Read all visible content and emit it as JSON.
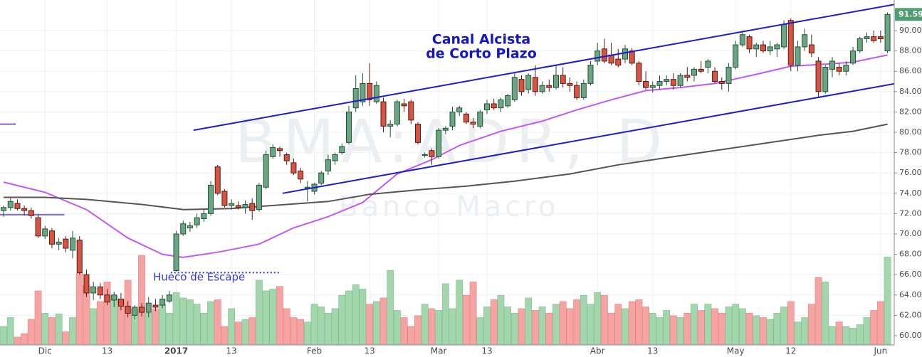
{
  "chart_data": {
    "type": "candlestick",
    "watermark": "BMA:ADR, D",
    "watermark_subtitle": "Banco Macro",
    "annotation_title": [
      "Canal Alcista",
      "de Corto Plazo"
    ],
    "annotation_gap": "Hueco de Escape",
    "annotation_color": "#1515c8",
    "gap_label_color": "#3a3ad8",
    "grid": true,
    "up_color": "#6ba583",
    "up_border": "#225437",
    "down_color": "#d75442",
    "down_border": "#5b1a13",
    "volume_up_color": "#a3d6ad",
    "volume_down_color": "#f5a3a3",
    "last_price": 91.59,
    "last_price_color": "#4f9e72",
    "xlim": [
      -0.52,
      128.87
    ],
    "ylim": [
      59.16,
      93.01
    ],
    "y2lim": [
      0,
      387
    ],
    "yticks": [
      {
        "value": 60,
        "label": "60.00"
      },
      {
        "value": 62,
        "label": "62.00"
      },
      {
        "value": 64,
        "label": "64.00"
      },
      {
        "value": 66,
        "label": "66.00"
      },
      {
        "value": 68,
        "label": "68.00"
      },
      {
        "value": 70,
        "label": "70.00"
      },
      {
        "value": 72,
        "label": "72.00"
      },
      {
        "value": 74,
        "label": "74.00"
      },
      {
        "value": 76,
        "label": "76.00"
      },
      {
        "value": 78,
        "label": "78.00"
      },
      {
        "value": 80,
        "label": "80.00"
      },
      {
        "value": 82,
        "label": "82.00"
      },
      {
        "value": 84,
        "label": "84.00"
      },
      {
        "value": 86,
        "label": "86.00"
      },
      {
        "value": 88,
        "label": "88.00"
      },
      {
        "value": 90,
        "label": "90.00"
      }
    ],
    "categories": [
      null,
      null,
      null,
      null,
      null,
      null,
      "Dic",
      null,
      null,
      null,
      null,
      null,
      null,
      null,
      null,
      "13",
      null,
      null,
      null,
      null,
      null,
      null,
      null,
      null,
      null,
      "2017",
      null,
      null,
      null,
      null,
      null,
      null,
      null,
      "13",
      null,
      null,
      null,
      null,
      null,
      null,
      null,
      null,
      null,
      null,
      null,
      "Feb",
      null,
      null,
      null,
      null,
      null,
      null,
      null,
      "13",
      null,
      null,
      null,
      null,
      null,
      null,
      null,
      null,
      null,
      "Mar",
      null,
      null,
      null,
      null,
      null,
      null,
      "13",
      null,
      null,
      null,
      null,
      null,
      null,
      null,
      null,
      null,
      null,
      null,
      null,
      null,
      null,
      null,
      "Abr",
      null,
      null,
      null,
      null,
      null,
      null,
      null,
      "13",
      null,
      null,
      null,
      null,
      null,
      null,
      null,
      null,
      null,
      null,
      null,
      "May",
      null,
      null,
      null,
      null,
      null,
      null,
      null,
      "12",
      null,
      null,
      null,
      null,
      null,
      null,
      null,
      null,
      null,
      null,
      null,
      null,
      "Jun",
      null
    ],
    "candles": [
      [
        72.3,
        72.8,
        71.7,
        72.6
      ],
      [
        72.6,
        73.5,
        72.3,
        73.2
      ],
      [
        73.0,
        73.4,
        72.3,
        72.5
      ],
      [
        72.5,
        72.8,
        71.8,
        72.3
      ],
      [
        72.3,
        72.6,
        71.5,
        71.8
      ],
      [
        71.6,
        71.9,
        69.6,
        69.8
      ],
      [
        69.8,
        70.8,
        69.5,
        70.5
      ],
      [
        70.3,
        70.6,
        68.6,
        69.0
      ],
      [
        69.0,
        69.6,
        68.4,
        69.2
      ],
      [
        69.5,
        69.8,
        68.2,
        68.6
      ],
      [
        68.4,
        70.3,
        67.6,
        69.6
      ],
      [
        69.4,
        69.8,
        66.0,
        66.2
      ],
      [
        66.0,
        66.5,
        63.8,
        64.2
      ],
      [
        64.2,
        65.3,
        63.5,
        64.8
      ],
      [
        64.8,
        65.2,
        63.6,
        64.0
      ],
      [
        64.0,
        64.6,
        63.0,
        63.3
      ],
      [
        63.5,
        64.3,
        62.8,
        64.0
      ],
      [
        63.6,
        64.2,
        62.5,
        62.9
      ],
      [
        62.9,
        63.4,
        61.8,
        62.2
      ],
      [
        62.0,
        63.0,
        61.6,
        62.8
      ],
      [
        62.8,
        63.2,
        61.9,
        62.3
      ],
      [
        62.3,
        63.8,
        61.8,
        63.2
      ],
      [
        63.0,
        63.6,
        62.4,
        62.8
      ],
      [
        63.0,
        64.0,
        62.7,
        63.6
      ],
      [
        63.4,
        64.4,
        63.2,
        64.0
      ],
      [
        66.4,
        70.3,
        66.3,
        70.0
      ],
      [
        70.0,
        71.3,
        69.8,
        71.0
      ],
      [
        70.6,
        71.2,
        70.2,
        70.8
      ],
      [
        70.9,
        72.0,
        70.6,
        71.6
      ],
      [
        71.5,
        72.4,
        71.2,
        72.0
      ],
      [
        72.0,
        75.2,
        71.8,
        74.8
      ],
      [
        76.6,
        76.8,
        73.8,
        74.0
      ],
      [
        74.2,
        74.4,
        72.6,
        72.8
      ],
      [
        72.8,
        73.4,
        72.4,
        73.0
      ],
      [
        72.8,
        73.2,
        72.4,
        72.6
      ],
      [
        72.6,
        73.3,
        72.0,
        72.9
      ],
      [
        73.0,
        73.5,
        71.4,
        72.3
      ],
      [
        72.4,
        75.0,
        72.2,
        74.8
      ],
      [
        74.6,
        78.2,
        74.4,
        77.8
      ],
      [
        77.6,
        78.8,
        77.4,
        78.5
      ],
      [
        78.4,
        78.6,
        77.6,
        78.2
      ],
      [
        77.8,
        78.0,
        76.8,
        77.2
      ],
      [
        77.0,
        77.4,
        75.8,
        76.0
      ],
      [
        76.2,
        76.5,
        75.0,
        75.4
      ],
      [
        74.5,
        75.2,
        73.2,
        74.6
      ],
      [
        74.2,
        75.0,
        73.9,
        74.9
      ],
      [
        75.0,
        76.2,
        74.8,
        76.0
      ],
      [
        76.2,
        77.8,
        75.8,
        77.3
      ],
      [
        77.2,
        78.0,
        76.8,
        77.8
      ],
      [
        78.0,
        78.9,
        77.8,
        78.6
      ],
      [
        79.0,
        82.6,
        78.8,
        82.0
      ],
      [
        82.4,
        85.6,
        82.0,
        84.3
      ],
      [
        83.0,
        85.8,
        82.6,
        84.8
      ],
      [
        84.8,
        86.8,
        82.6,
        83.2
      ],
      [
        83.0,
        85.0,
        82.8,
        84.6
      ],
      [
        83.0,
        83.4,
        80.0,
        80.6
      ],
      [
        80.6,
        81.2,
        79.5,
        80.8
      ],
      [
        80.8,
        83.2,
        80.6,
        83.0
      ],
      [
        82.8,
        83.3,
        82.0,
        82.6
      ],
      [
        83.0,
        83.2,
        80.8,
        81.2
      ],
      [
        80.8,
        81.0,
        78.8,
        79.0
      ],
      [
        77.8,
        78.0,
        77.5,
        77.8
      ],
      [
        78.2,
        78.4,
        76.8,
        77.6
      ],
      [
        77.6,
        80.4,
        77.4,
        80.2
      ],
      [
        80.2,
        80.6,
        79.8,
        80.4
      ],
      [
        80.6,
        82.5,
        80.2,
        82.0
      ],
      [
        82.0,
        82.6,
        81.6,
        82.4
      ],
      [
        81.8,
        82.0,
        80.8,
        81.0
      ],
      [
        81.0,
        81.4,
        80.4,
        80.8
      ],
      [
        80.6,
        82.2,
        80.4,
        82.0
      ],
      [
        82.2,
        83.2,
        81.8,
        82.8
      ],
      [
        82.8,
        83.3,
        82.2,
        82.4
      ],
      [
        82.4,
        83.4,
        82.0,
        83.2
      ],
      [
        82.6,
        83.8,
        82.4,
        83.6
      ],
      [
        83.2,
        85.8,
        83.0,
        85.4
      ],
      [
        85.2,
        85.6,
        83.6,
        84.0
      ],
      [
        84.2,
        85.8,
        83.8,
        85.6
      ],
      [
        85.4,
        86.6,
        83.6,
        84.0
      ],
      [
        84.0,
        85.0,
        83.8,
        84.6
      ],
      [
        84.6,
        85.2,
        84.0,
        84.4
      ],
      [
        84.4,
        86.6,
        84.2,
        85.6
      ],
      [
        85.6,
        86.4,
        84.4,
        84.8
      ],
      [
        84.8,
        85.4,
        84.0,
        84.6
      ],
      [
        84.6,
        85.0,
        83.2,
        83.4
      ],
      [
        83.4,
        85.2,
        83.2,
        84.8
      ],
      [
        84.8,
        87.0,
        84.6,
        86.6
      ],
      [
        87.0,
        88.8,
        86.6,
        88.0
      ],
      [
        88.2,
        89.2,
        86.8,
        87.0
      ],
      [
        87.6,
        88.8,
        86.6,
        86.8
      ],
      [
        87.2,
        88.2,
        86.4,
        86.6
      ],
      [
        87.2,
        88.6,
        86.8,
        88.2
      ],
      [
        88.0,
        88.3,
        86.6,
        86.8
      ],
      [
        86.8,
        87.0,
        84.6,
        85.0
      ],
      [
        85.0,
        86.0,
        84.2,
        84.4
      ],
      [
        84.4,
        85.0,
        83.9,
        84.6
      ],
      [
        84.6,
        85.6,
        84.2,
        85.0
      ],
      [
        85.0,
        85.6,
        84.6,
        85.2
      ],
      [
        85.2,
        85.8,
        84.2,
        84.6
      ],
      [
        84.6,
        85.8,
        84.4,
        85.6
      ],
      [
        85.6,
        86.4,
        85.0,
        85.4
      ],
      [
        85.6,
        86.4,
        85.0,
        86.2
      ],
      [
        86.2,
        87.0,
        85.8,
        86.0
      ],
      [
        86.4,
        87.2,
        85.8,
        87.0
      ],
      [
        86.0,
        86.4,
        84.8,
        85.0
      ],
      [
        85.0,
        85.4,
        84.2,
        84.8
      ],
      [
        84.8,
        86.8,
        84.0,
        86.4
      ],
      [
        86.4,
        89.0,
        86.2,
        88.6
      ],
      [
        88.6,
        90.0,
        88.4,
        89.6
      ],
      [
        89.4,
        89.6,
        87.8,
        88.2
      ],
      [
        88.2,
        88.8,
        87.4,
        88.6
      ],
      [
        88.6,
        89.0,
        87.8,
        88.0
      ],
      [
        88.0,
        89.0,
        87.6,
        88.4
      ],
      [
        88.2,
        88.8,
        87.4,
        88.6
      ],
      [
        88.4,
        91.0,
        88.2,
        90.6
      ],
      [
        91.0,
        91.2,
        86.0,
        86.6
      ],
      [
        86.6,
        89.0,
        86.0,
        88.4
      ],
      [
        88.4,
        90.2,
        88.0,
        89.6
      ],
      [
        88.6,
        89.6,
        87.4,
        87.8
      ],
      [
        87.0,
        87.4,
        83.4,
        84.0
      ],
      [
        84.0,
        86.6,
        83.8,
        86.4
      ],
      [
        86.2,
        87.4,
        85.4,
        87.0
      ],
      [
        86.4,
        86.8,
        85.6,
        86.0
      ],
      [
        86.0,
        87.0,
        85.6,
        86.6
      ],
      [
        86.8,
        88.4,
        86.6,
        88.0
      ],
      [
        88.0,
        89.4,
        87.8,
        89.2
      ],
      [
        89.2,
        89.8,
        88.8,
        89.4
      ],
      [
        89.4,
        90.0,
        88.8,
        89.0
      ],
      [
        89.4,
        90.0,
        88.8,
        89.2
      ],
      [
        88.0,
        91.8,
        87.8,
        91.59
      ]
    ],
    "volume": [
      20,
      30,
      8,
      12,
      28,
      60,
      35,
      30,
      34,
      14,
      30,
      80,
      66,
      40,
      48,
      70,
      55,
      50,
      72,
      40,
      100,
      35,
      40,
      45,
      35,
      58,
      52,
      50,
      45,
      35,
      48,
      50,
      20,
      40,
      25,
      28,
      30,
      72,
      60,
      62,
      65,
      40,
      30,
      28,
      25,
      45,
      42,
      35,
      40,
      55,
      60,
      67,
      62,
      45,
      48,
      52,
      83,
      38,
      30,
      20,
      32,
      45,
      40,
      38,
      68,
      40,
      72,
      55,
      70,
      30,
      42,
      50,
      55,
      42,
      35,
      40,
      52,
      38,
      42,
      35,
      45,
      48,
      40,
      50,
      55,
      45,
      58,
      55,
      35,
      45,
      40,
      48,
      50,
      42,
      35,
      30,
      38,
      32,
      30,
      35,
      45,
      38,
      45,
      40,
      35,
      42,
      45,
      40,
      35,
      32,
      30,
      28,
      35,
      42,
      48,
      25,
      30,
      45,
      75,
      70,
      20,
      25,
      20,
      18,
      22,
      30,
      38,
      48,
      98
    ],
    "ma_lines": [
      {
        "color": "#c25af2",
        "x": [
          0,
          6,
          12,
          18,
          23,
          26,
          31,
          37,
          42,
          47,
          52,
          57,
          62,
          66,
          72,
          78,
          83,
          88,
          93,
          98,
          103,
          109,
          114,
          119,
          123,
          128
        ],
        "values": [
          75.1,
          74.1,
          72.4,
          69.6,
          68.0,
          67.7,
          68.2,
          69.0,
          70.6,
          71.7,
          73.1,
          75.9,
          77.3,
          78.7,
          80.1,
          81.1,
          82.2,
          83.2,
          84.1,
          84.4,
          84.8,
          85.7,
          86.5,
          86.7,
          86.9,
          87.6
        ]
      },
      {
        "color": "#555555",
        "x": [
          0,
          6,
          12,
          20,
          26,
          33,
          41,
          47,
          53,
          61,
          67,
          74,
          82,
          89,
          96,
          103,
          110,
          118,
          123,
          128
        ],
        "values": [
          73.6,
          73.6,
          73.4,
          72.9,
          72.4,
          72.5,
          72.9,
          73.2,
          73.9,
          74.4,
          74.7,
          75.2,
          75.9,
          76.8,
          77.5,
          78.2,
          78.9,
          79.7,
          80.1,
          80.8
        ]
      }
    ],
    "trend_lines": [
      {
        "color": "#1c1cd0",
        "x": [
          27.5,
          132.5
        ],
        "values": [
          80.2,
          93.0
        ]
      },
      {
        "color": "#1c1cd0",
        "x": [
          40.4,
          132.5
        ],
        "values": [
          74.0,
          85.2
        ]
      }
    ],
    "levels": [
      {
        "color": "#3333dd",
        "x": [
          24.2,
          40.2
        ],
        "value": 66.2,
        "style": "dotted"
      },
      {
        "color": "#8a5cd0",
        "x": [
          -0.52,
          1.75
        ],
        "value": 80.8,
        "style": "solid"
      },
      {
        "color": "#7a6ad8",
        "x": [
          -0.52,
          8.8
        ],
        "value": 71.9,
        "style": "solid"
      }
    ]
  }
}
